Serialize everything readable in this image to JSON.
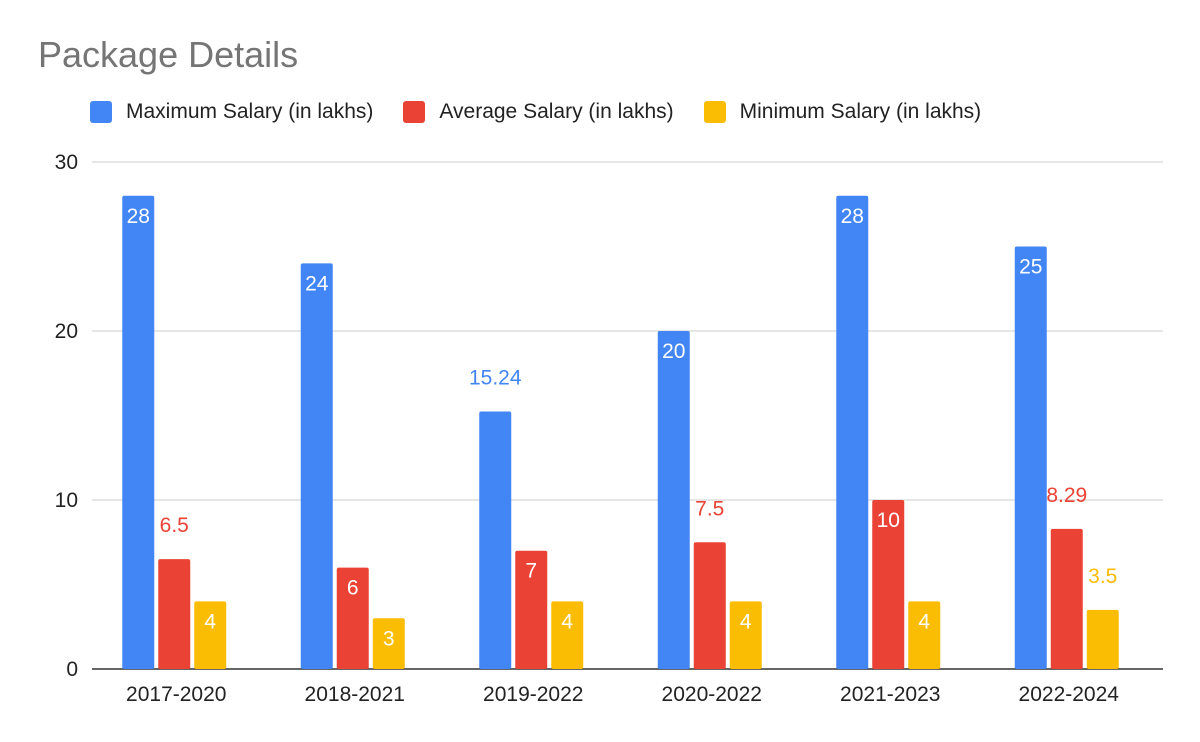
{
  "chart_data": {
    "type": "bar",
    "title": "Package Details",
    "categories": [
      "2017-2020",
      "2018-2021",
      "2019-2022",
      "2020-2022",
      "2021-2023",
      "2022-2024"
    ],
    "series": [
      {
        "name": "Maximum Salary (in lakhs)",
        "color": "#4285F4",
        "values": [
          28,
          24,
          15.24,
          20,
          28,
          25
        ],
        "labels": [
          "28",
          "24",
          "15.24",
          "20",
          "28",
          "25"
        ]
      },
      {
        "name": "Average Salary (in lakhs)",
        "color": "#EA4335",
        "values": [
          6.5,
          6,
          7,
          7.5,
          10,
          8.29
        ],
        "labels": [
          "6.5",
          "6",
          "7",
          "7.5",
          "10",
          "8.29"
        ]
      },
      {
        "name": "Minimum Salary (in lakhs)",
        "color": "#FBBC04",
        "values": [
          4,
          3,
          4,
          4,
          4,
          3.5
        ],
        "labels": [
          "4",
          "3",
          "4",
          "4",
          "4",
          "3.5"
        ]
      }
    ],
    "ylim": [
      0,
      30
    ],
    "yticks": [
      "0",
      "10",
      "20",
      "30"
    ],
    "grid": true,
    "legend": "top"
  }
}
